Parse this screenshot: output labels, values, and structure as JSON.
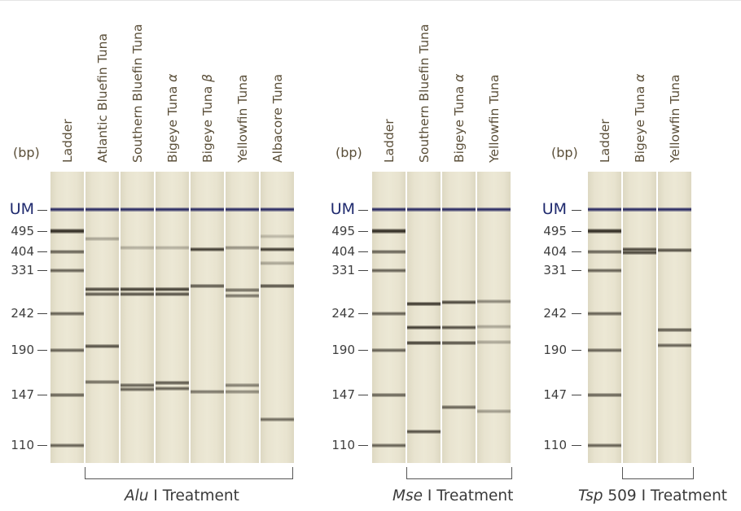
{
  "panels": [
    {
      "id": "alu",
      "bp_unit": "(bp)",
      "treatment": {
        "enzyme": "Alu",
        "suffix": " I Treatment"
      },
      "lanes": [
        {
          "label": "Ladder",
          "italic_suffix": "",
          "type": "ladder"
        },
        {
          "label": "Atlantic Bluefin Tuna",
          "italic_suffix": "",
          "bands": [
            {
              "bp": 460,
              "i": 0.35
            },
            {
              "bp": 292,
              "i": 0.85
            },
            {
              "bp": 282,
              "i": 0.75
            },
            {
              "bp": 195,
              "i": 0.8
            },
            {
              "bp": 159,
              "i": 0.65
            }
          ]
        },
        {
          "label": "Southern Bluefin Tuna",
          "italic_suffix": "",
          "bands": [
            {
              "bp": 420,
              "i": 0.3
            },
            {
              "bp": 292,
              "i": 0.9
            },
            {
              "bp": 282,
              "i": 0.8
            },
            {
              "bp": 156,
              "i": 0.7
            },
            {
              "bp": 152,
              "i": 0.7
            }
          ]
        },
        {
          "label": "Bigeye Tuna ",
          "italic_suffix": "α",
          "bands": [
            {
              "bp": 420,
              "i": 0.3
            },
            {
              "bp": 292,
              "i": 0.9
            },
            {
              "bp": 282,
              "i": 0.8
            },
            {
              "bp": 158,
              "i": 0.75
            },
            {
              "bp": 153,
              "i": 0.7
            }
          ]
        },
        {
          "label": "Bigeye Tuna ",
          "italic_suffix": "β",
          "bands": [
            {
              "bp": 414,
              "i": 0.9
            },
            {
              "bp": 298,
              "i": 0.75
            },
            {
              "bp": 150,
              "i": 0.6
            }
          ]
        },
        {
          "label": "Yellowfin Tuna",
          "italic_suffix": "",
          "bands": [
            {
              "bp": 420,
              "i": 0.45
            },
            {
              "bp": 290,
              "i": 0.65
            },
            {
              "bp": 278,
              "i": 0.6
            },
            {
              "bp": 156,
              "i": 0.55
            },
            {
              "bp": 150,
              "i": 0.5
            }
          ]
        },
        {
          "label": "Albacore Tuna",
          "italic_suffix": "",
          "bands": [
            {
              "bp": 470,
              "i": 0.25
            },
            {
              "bp": 414,
              "i": 0.9
            },
            {
              "bp": 358,
              "i": 0.35
            },
            {
              "bp": 298,
              "i": 0.8
            },
            {
              "bp": 129,
              "i": 0.65
            }
          ]
        }
      ]
    },
    {
      "id": "mse",
      "bp_unit": "(bp)",
      "treatment": {
        "enzyme": "Mse",
        "suffix": " I Treatment"
      },
      "lanes": [
        {
          "label": "Ladder",
          "italic_suffix": "",
          "type": "ladder"
        },
        {
          "label": "Southern Bluefin Tuna",
          "italic_suffix": "",
          "bands": [
            {
              "bp": 262,
              "i": 0.95
            },
            {
              "bp": 222,
              "i": 0.9
            },
            {
              "bp": 200,
              "i": 0.9
            },
            {
              "bp": 120,
              "i": 0.8
            }
          ]
        },
        {
          "label": "Bigeye Tuna ",
          "italic_suffix": "α",
          "bands": [
            {
              "bp": 264,
              "i": 0.85
            },
            {
              "bp": 222,
              "i": 0.8
            },
            {
              "bp": 200,
              "i": 0.8
            },
            {
              "bp": 138,
              "i": 0.7
            }
          ]
        },
        {
          "label": "Yellowfin Tuna",
          "italic_suffix": "",
          "bands": [
            {
              "bp": 266,
              "i": 0.5
            },
            {
              "bp": 223,
              "i": 0.35
            },
            {
              "bp": 201,
              "i": 0.35
            },
            {
              "bp": 135,
              "i": 0.4
            }
          ]
        }
      ]
    },
    {
      "id": "tsp",
      "bp_unit": "(bp)",
      "treatment": {
        "enzyme": "Tsp",
        "suffix": " 509 I Treatment"
      },
      "lanes": [
        {
          "label": "Ladder",
          "italic_suffix": "",
          "type": "ladder"
        },
        {
          "label": "Bigeye Tuna ",
          "italic_suffix": "α",
          "bands": [
            {
              "bp": 414,
              "i": 0.85
            },
            {
              "bp": 400,
              "i": 0.85
            }
          ]
        },
        {
          "label": "Yellowfin Tuna",
          "italic_suffix": "",
          "bands": [
            {
              "bp": 410,
              "i": 0.8
            },
            {
              "bp": 218,
              "i": 0.75
            },
            {
              "bp": 196,
              "i": 0.7
            }
          ]
        }
      ]
    }
  ],
  "markers": [
    {
      "label": "UM",
      "bp": "UM"
    },
    {
      "label": "495",
      "bp": 495
    },
    {
      "label": "404",
      "bp": 404
    },
    {
      "label": "331",
      "bp": 331
    },
    {
      "label": "242",
      "bp": 242
    },
    {
      "label": "190",
      "bp": 190
    },
    {
      "label": "147",
      "bp": 147
    },
    {
      "label": "110",
      "bp": 110
    }
  ],
  "colors": {
    "upper_marker": "#1e1f5c",
    "band": "#1f1a12",
    "lane_bg": "#e8e3cf"
  }
}
